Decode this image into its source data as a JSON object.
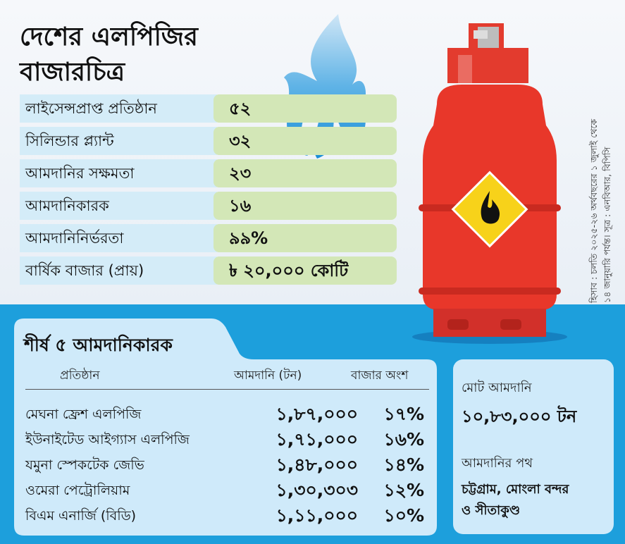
{
  "title": "দেশের এলপিজির বাজারচিত্র",
  "stats": [
    {
      "label": "লাইসেন্সপ্রাপ্ত প্রতিষ্ঠান",
      "value": "৫২"
    },
    {
      "label": "সিলিন্ডার প্ল্যান্ট",
      "value": "৩২"
    },
    {
      "label": "আমদানির সক্ষমতা",
      "value": "২৩"
    },
    {
      "label": "আমদানিকারক",
      "value": "১৬"
    },
    {
      "label": "আমদানিনির্ভরতা",
      "value": "৯৯%"
    },
    {
      "label": "বার্ষিক বাজার (প্রায়)",
      "value": "৳ ২০,০০০ কোটি"
    }
  ],
  "source": {
    "line1": "হিসাব : চলতি ২০২৫-২৬ অর্থবছরের ১ জুলাই থেকে",
    "line2": "১৪ জানুয়ারি পর্যন্ত। সূত্র : এনবিআর, বিপিসি"
  },
  "importers": {
    "title": "শীর্ষ ৫ আমদানিকারক",
    "headers": [
      "প্রতিষ্ঠান",
      "আমদানি (টন)",
      "বাজার অংশ"
    ],
    "rows": [
      {
        "name": "মেঘনা ফ্রেশ এলপিজি",
        "tons": "১,৮৭,০০০",
        "share": "১৭%"
      },
      {
        "name": "ইউনাইটেড আইগ্যাস এলপিজি",
        "tons": "১,৭১,০০০",
        "share": "১৬%"
      },
      {
        "name": "যমুনা স্পেকটেক জেভি",
        "tons": "১,৪৮,০০০",
        "share": "১৪%"
      },
      {
        "name": "ওমেরা পেট্রোলিয়াম",
        "tons": "১,৩০,৩০৩",
        "share": "১২%"
      },
      {
        "name": "বিএম এনার্জি (বিডি)",
        "tons": "১,১১,০০০",
        "share": "১০%"
      }
    ]
  },
  "summary": {
    "total_label": "মোট আমদানি",
    "total_value": "১০,৮৩,০০০ টন",
    "route_label": "আমদানির পথ",
    "route_value_1": "চট্টগ্রাম, মোংলা বন্দর",
    "route_value_2": "ও সীতাকুণ্ড"
  },
  "colors": {
    "cylinder": "#e8372a",
    "background_blue": "#1d9fdc",
    "label_cell": "#d4ecf8",
    "value_cell": "#d3e7b7",
    "warning": "#f7d21a"
  },
  "icons": [
    "flame-icon",
    "gas-cylinder-icon",
    "fire-warning-icon"
  ]
}
